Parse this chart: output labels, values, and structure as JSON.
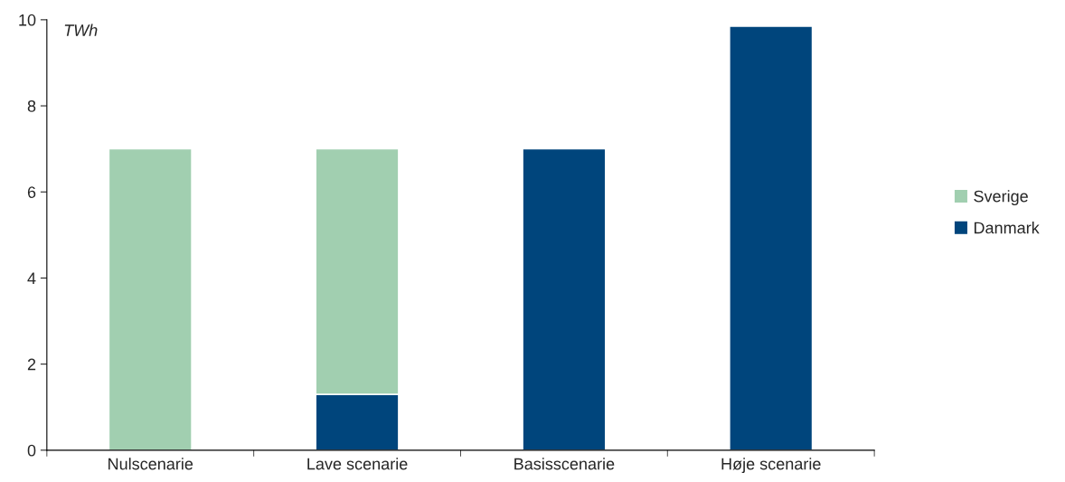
{
  "chart_data": {
    "type": "bar",
    "stacked": true,
    "ylabel": "TWh",
    "categories": [
      "Nulscenarie",
      "Lave scenarie",
      "Basisscenarie",
      "Høje scenarie"
    ],
    "series": [
      {
        "name": "Danmark",
        "color": "#00457c",
        "values": [
          null,
          1.3,
          7.0,
          9.85
        ]
      },
      {
        "name": "Sverige",
        "color": "#a1cfb0",
        "values": [
          7.0,
          5.7,
          null,
          null
        ]
      }
    ],
    "ylim": [
      0,
      10
    ],
    "yticks": [
      0,
      2,
      4,
      6,
      8,
      10
    ],
    "grid": false,
    "legend": "right"
  }
}
